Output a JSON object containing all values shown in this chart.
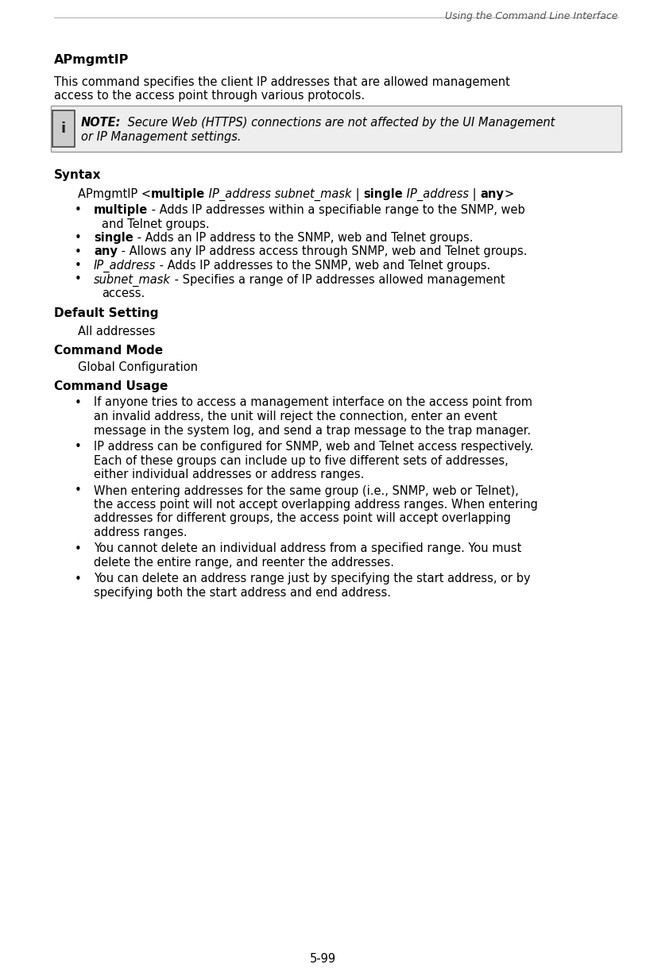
{
  "page_header": "Using the Command Line Interface",
  "page_footer": "5-99",
  "title": "APmgmtIP",
  "title_desc_line1": "This command specifies the client IP addresses that are allowed management",
  "title_desc_line2": "access to the access point through various protocols.",
  "note_bold": "NOTE:",
  "note_italic": " Secure Web (HTTPS) connections are not affected by the UI Management",
  "note_line2": "or IP Management settings.",
  "syntax_label": "Syntax",
  "syntax_cmd_parts": [
    {
      "text": "APmgmtIP <",
      "bold": false,
      "italic": false
    },
    {
      "text": "multiple",
      "bold": true,
      "italic": false
    },
    {
      "text": " IP_address subnet_mask",
      "bold": false,
      "italic": true
    },
    {
      "text": " | ",
      "bold": false,
      "italic": false
    },
    {
      "text": "single",
      "bold": true,
      "italic": false
    },
    {
      "text": " IP_address",
      "bold": false,
      "italic": true
    },
    {
      "text": " | ",
      "bold": false,
      "italic": false
    },
    {
      "text": "any",
      "bold": true,
      "italic": false
    },
    {
      "text": ">",
      "bold": false,
      "italic": false
    }
  ],
  "syntax_bullets": [
    {
      "bold_part": "multiple",
      "bold_italic": false,
      "italic_part": false,
      "rest": " - Adds IP addresses within a specifiable range to the SNMP, web",
      "continuation": "and Telnet groups.",
      "has_continuation": true
    },
    {
      "bold_part": "single",
      "bold_italic": false,
      "italic_part": false,
      "rest": " - Adds an IP address to the SNMP, web and Telnet groups.",
      "has_continuation": false
    },
    {
      "bold_part": "any",
      "bold_italic": false,
      "italic_part": false,
      "rest": " - Allows any IP address access through SNMP, web and Telnet groups.",
      "has_continuation": false
    },
    {
      "bold_part": "IP_address",
      "bold_italic": true,
      "italic_part": true,
      "rest": " - Adds IP addresses to the SNMP, web and Telnet groups.",
      "has_continuation": false
    },
    {
      "bold_part": "subnet_mask",
      "bold_italic": false,
      "italic_part": true,
      "rest": " - Specifies a range of IP addresses allowed management",
      "continuation": "access.",
      "has_continuation": true
    }
  ],
  "default_label": "Default Setting",
  "default_value": "All addresses",
  "mode_label": "Command Mode",
  "mode_value": "Global Configuration",
  "usage_label": "Command Usage",
  "usage_bullets": [
    {
      "lines": [
        "If anyone tries to access a management interface on the access point from",
        "an invalid address, the unit will reject the connection, enter an event",
        "message in the system log, and send a trap message to the trap manager."
      ]
    },
    {
      "lines": [
        "IP address can be configured for SNMP, web and Telnet access respectively.",
        "Each of these groups can include up to five different sets of addresses,",
        "either individual addresses or address ranges."
      ]
    },
    {
      "lines": [
        "When entering addresses for the same group (i.e., SNMP, web or Telnet),",
        "the access point will not accept overlapping address ranges. When entering",
        "addresses for different groups, the access point will accept overlapping",
        "address ranges."
      ]
    },
    {
      "lines": [
        "You cannot delete an individual address from a specified range. You must",
        "delete the entire range, and reenter the addresses."
      ]
    },
    {
      "lines": [
        "You can delete an address range just by specifying the start address, or by",
        "specifying both the start address and end address."
      ]
    }
  ],
  "bg_color": "#ffffff",
  "text_color": "#000000"
}
